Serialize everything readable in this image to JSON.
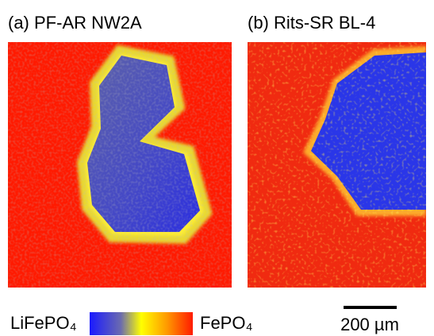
{
  "panels": [
    {
      "title": "(a) PF-AR NW2A"
    },
    {
      "title": "(b) Rits-SR BL-4"
    }
  ],
  "colorbar": {
    "low_label": "LiFePO₄",
    "high_label": "FePO₄"
  },
  "scale_bar": {
    "label": "200 µm"
  }
}
